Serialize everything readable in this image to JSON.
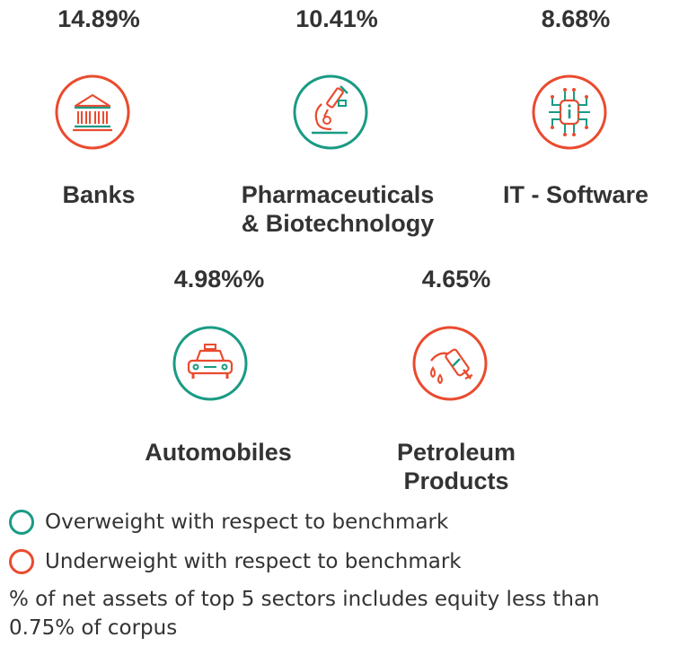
{
  "sectors": [
    {
      "name_lines": [
        "Banks"
      ],
      "percent": "14.89%",
      "icon": "bank-icon",
      "ring": "underweight"
    },
    {
      "name_lines": [
        "Pharmaceuticals",
        "& Biotechnology"
      ],
      "percent": "10.41%",
      "icon": "microscope-icon",
      "ring": "overweight"
    },
    {
      "name_lines": [
        "IT - Software"
      ],
      "percent": "8.68%",
      "icon": "circuit-chip-icon",
      "ring": "underweight"
    },
    {
      "name_lines": [
        "Automobiles"
      ],
      "percent": "4.98%%",
      "icon": "car-icon",
      "ring": "overweight"
    },
    {
      "name_lines": [
        "Petroleum",
        "Products"
      ],
      "percent": "4.65%",
      "icon": "fuel-nozzle-icon",
      "ring": "underweight"
    }
  ],
  "legend": {
    "overweight": "Overweight with respect to benchmark",
    "underweight": "Underweight with respect to benchmark"
  },
  "note": "% of net assets of top 5 sectors includes equity less than 0.75% of corpus",
  "colors": {
    "overweight": "#1a9b84",
    "underweight": "#ea4b2f",
    "text": "#333333"
  }
}
